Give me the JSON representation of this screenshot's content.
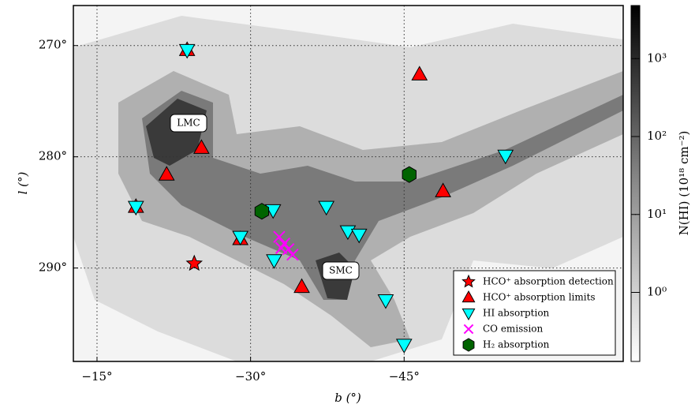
{
  "chart_data": {
    "type": "scatter",
    "xlabel": "b (°)",
    "ylabel": "l (°)",
    "xlim": [
      -12.69,
      -66.4
    ],
    "ylim": [
      266.4,
      298.4
    ],
    "y_inverted": true,
    "xticks": [
      {
        "value": -15,
        "label": "−15°"
      },
      {
        "value": -30,
        "label": "−30°"
      },
      {
        "value": -45,
        "label": "−45°"
      }
    ],
    "yticks": [
      {
        "value": 270,
        "label": "270°"
      },
      {
        "value": 280,
        "label": "280°"
      },
      {
        "value": 290,
        "label": "290°"
      }
    ],
    "grid": true,
    "legend": "lower right",
    "annotations": [
      {
        "text": "LMC",
        "x": -24.2,
        "y": 277.0
      },
      {
        "text": "SMC",
        "x": -39.1,
        "y": 290.2
      }
    ],
    "colorbar": {
      "label": "N(HI) (10¹⁸ cm⁻²)",
      "log": true,
      "clim": [
        0.13,
        4800
      ],
      "ticks": [
        {
          "value": 1,
          "label": "10⁰"
        },
        {
          "value": 10,
          "label": "10¹"
        },
        {
          "value": 100,
          "label": "10²"
        },
        {
          "value": 1000,
          "label": "10³"
        }
      ]
    },
    "series": [
      {
        "name": "HCO⁺ absorption detection",
        "color": "#ff0000",
        "marker": "star",
        "x": [
          -24.5
        ],
        "y": [
          289.6
        ]
      },
      {
        "name": "HCO⁺ absorption limits",
        "color": "#ff0000",
        "marker": "triangle-up",
        "x": [
          -23.8,
          -46.5,
          -25.2,
          -21.8,
          -18.8,
          -29.0,
          -35.0,
          -48.8
        ],
        "y": [
          270.4,
          272.6,
          279.2,
          281.6,
          284.5,
          287.4,
          291.7,
          283.1
        ]
      },
      {
        "name": "HI absorption",
        "color": "#00ffff",
        "marker": "triangle-down",
        "x": [
          -23.8,
          -54.9,
          -18.8,
          -32.2,
          -37.4,
          -29.0,
          -39.5,
          -40.6,
          -32.3,
          -43.2,
          -45.0
        ],
        "y": [
          270.4,
          279.9,
          284.5,
          284.8,
          284.5,
          287.2,
          286.7,
          287.0,
          289.3,
          292.9,
          296.9
        ]
      },
      {
        "name": "CO emission",
        "color": "#ff00ff",
        "marker": "x",
        "x": [
          -32.8,
          -33.3,
          -33.7,
          -34.1,
          -33.0
        ],
        "y": [
          287.2,
          287.8,
          288.3,
          288.8,
          288.2
        ]
      },
      {
        "name": "H₂ absorption",
        "color": "#006400",
        "marker": "hexagon",
        "x": [
          -31.1,
          -45.5
        ],
        "y": [
          284.9,
          281.6
        ]
      }
    ]
  }
}
